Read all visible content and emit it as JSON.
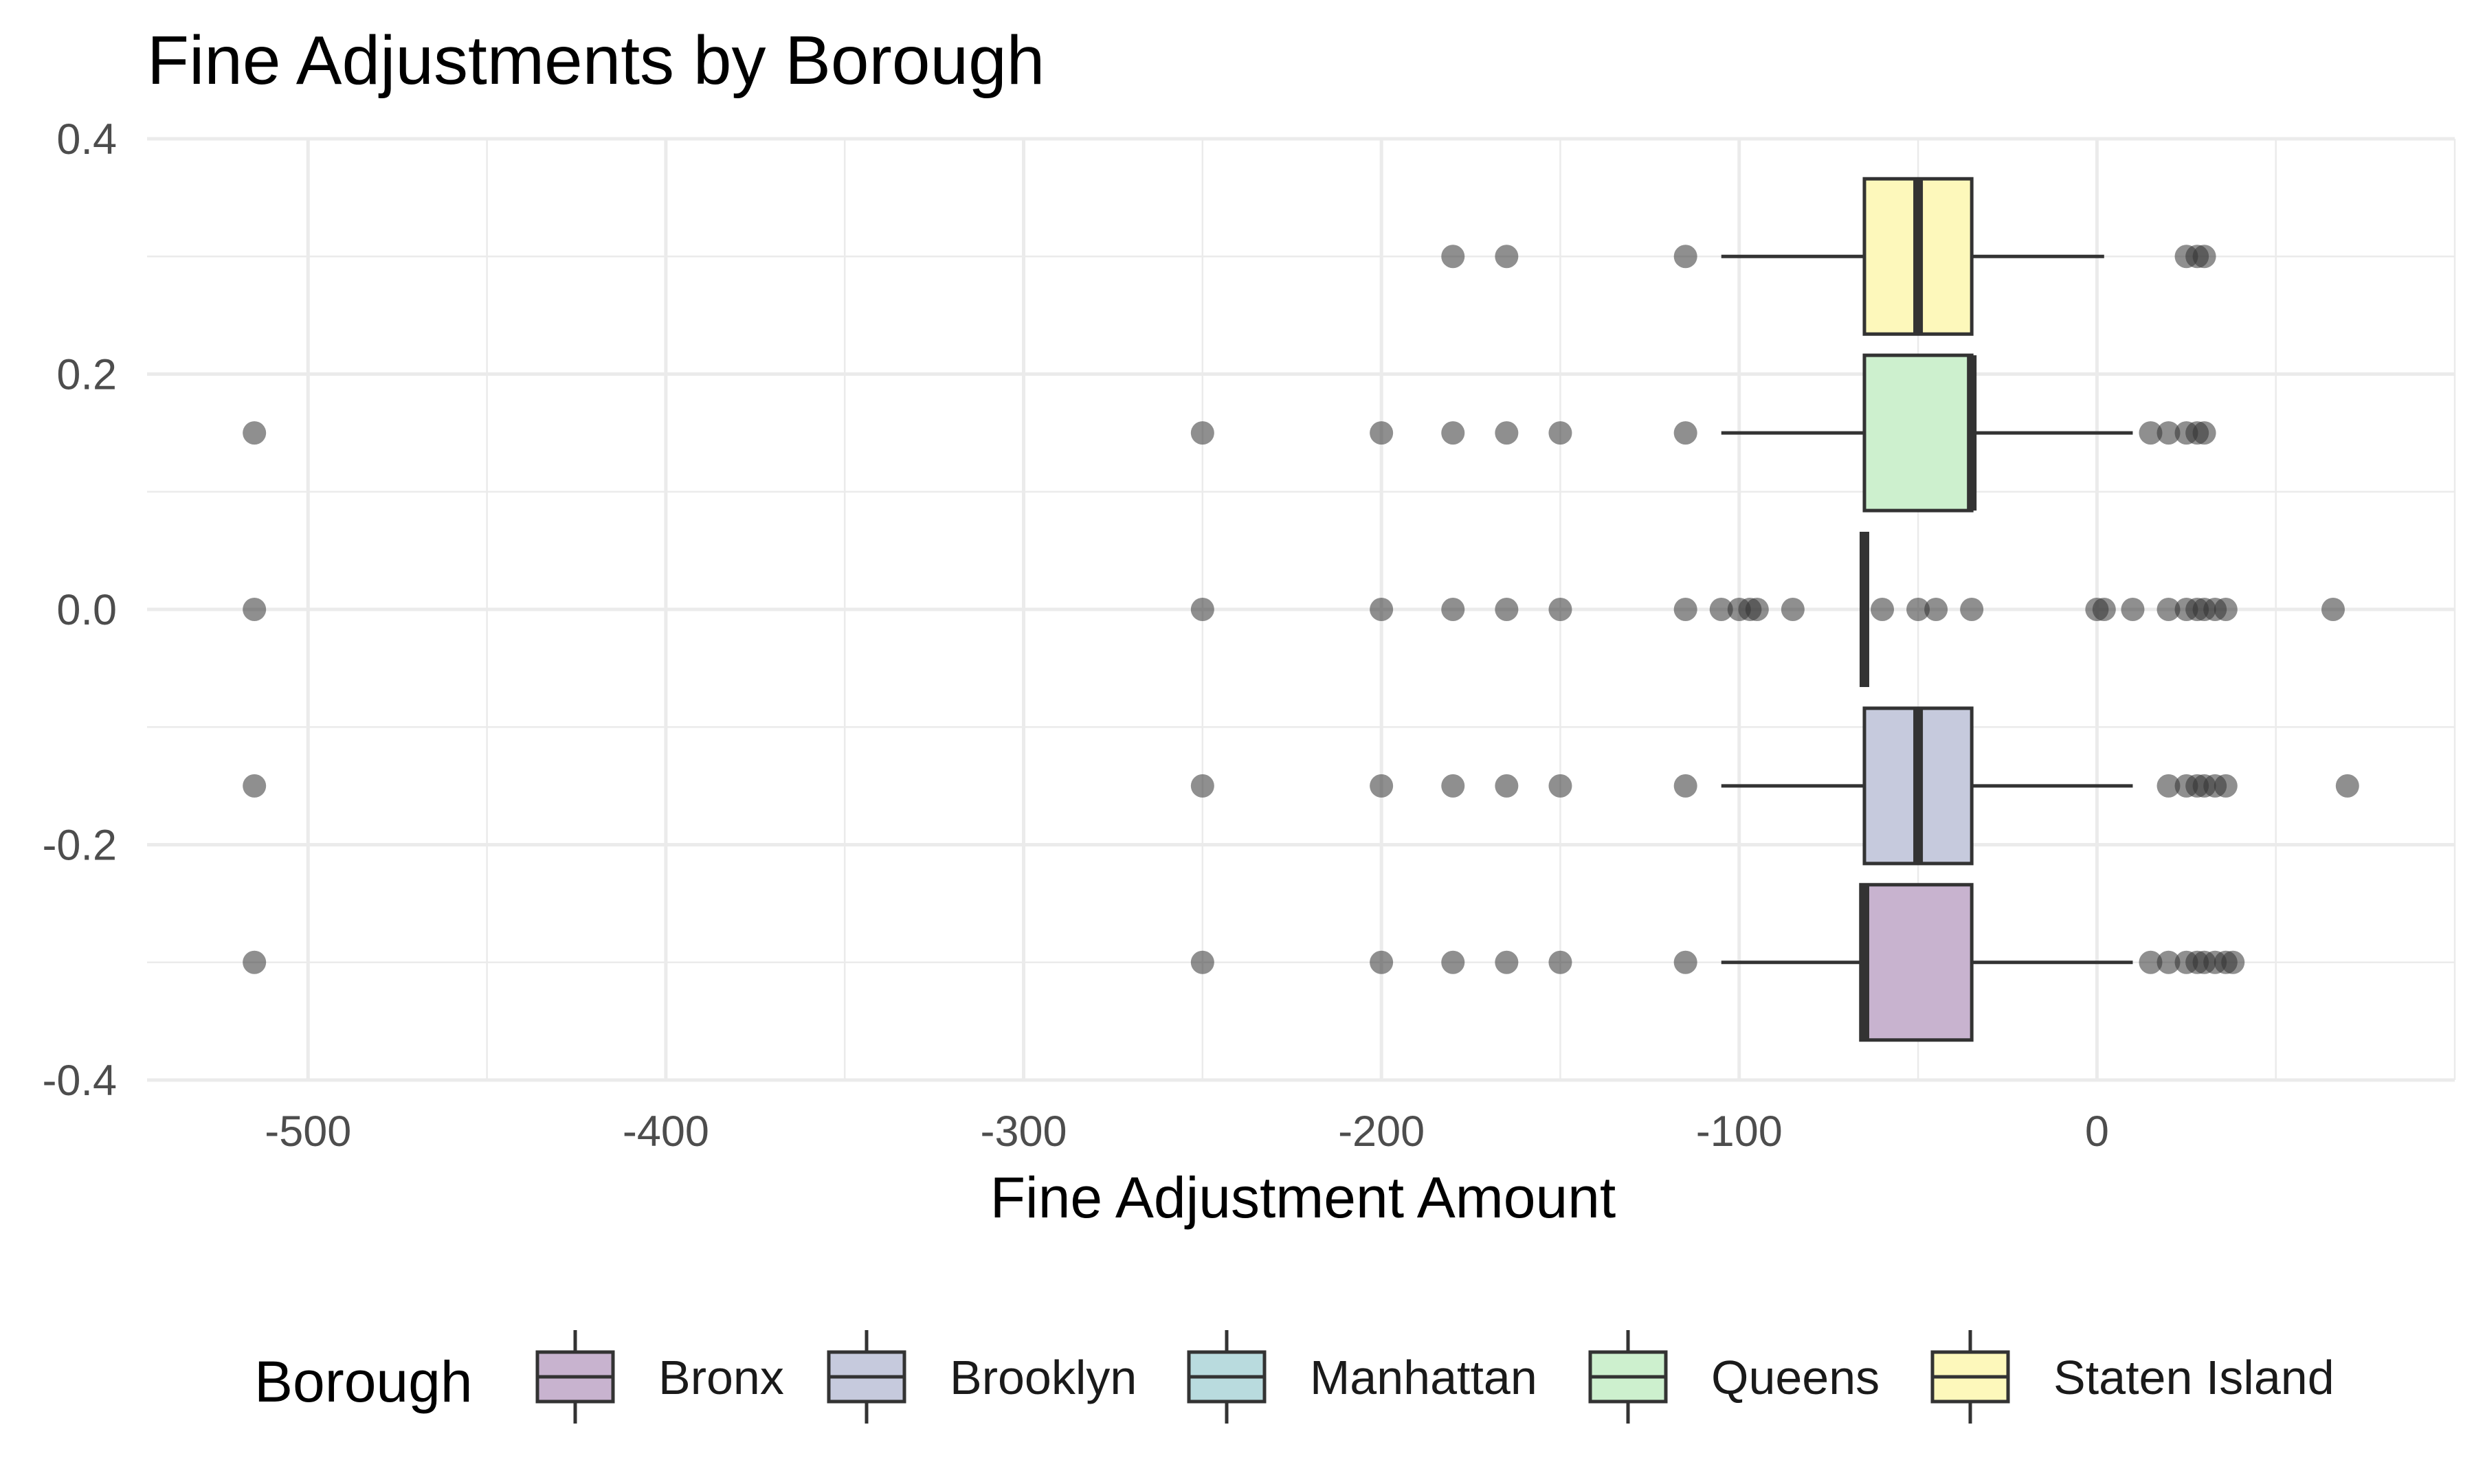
{
  "chart_data": {
    "type": "boxplot",
    "title": "Fine Adjustments by Borough",
    "xlabel": "Fine Adjustment Amount",
    "ylabel": "",
    "xlim": [
      -545,
      100
    ],
    "ylim": [
      -0.4,
      0.4
    ],
    "x_ticks": [
      -500,
      -400,
      -300,
      -200,
      -100,
      0
    ],
    "y_ticks": [
      0.4,
      0.2,
      0.0,
      -0.2,
      -0.4
    ],
    "y_tick_labels": [
      "0.4",
      "0.2",
      "0.0",
      "-0.2",
      "-0.4"
    ],
    "x_tick_labels": [
      "-500",
      "-400",
      "-300",
      "-200",
      "-100",
      "0"
    ],
    "grid": true,
    "legend": {
      "title": "Borough",
      "position": "bottom",
      "entries": [
        "Bronx",
        "Brooklyn",
        "Manhattan",
        "Queens",
        "Staten Island"
      ]
    },
    "colors": {
      "Bronx": "#c8b3cf",
      "Brooklyn": "#c6cadd",
      "Manhattan": "#b9dbde",
      "Queens": "#cdf0ce",
      "Staten Island": "#fdf8bb",
      "stroke": "#333333",
      "grid": "#ebebeb"
    },
    "series": [
      {
        "name": "Bronx",
        "y": -0.3,
        "q1": -66,
        "median": -65,
        "q3": -35,
        "whisker_low": -105,
        "whisker_high": 10,
        "outliers": [
          -515,
          -250,
          -200,
          -180,
          -165,
          -150,
          -115,
          15,
          20,
          25,
          28,
          30,
          33,
          36,
          38
        ]
      },
      {
        "name": "Brooklyn",
        "y": -0.15,
        "q1": -65,
        "median": -50,
        "q3": -35,
        "whisker_low": -105,
        "whisker_high": 10,
        "outliers": [
          -515,
          -250,
          -200,
          -180,
          -165,
          -150,
          -115,
          20,
          25,
          28,
          30,
          33,
          36,
          70
        ]
      },
      {
        "name": "Manhattan",
        "y": 0.0,
        "q1": -65,
        "median": -65,
        "q3": -65,
        "whisker_low": -65,
        "whisker_high": -65,
        "outliers": [
          -515,
          -250,
          -200,
          -180,
          -165,
          -150,
          -115,
          -105,
          -100,
          -97,
          -95,
          -85,
          -60,
          -50,
          -45,
          -35,
          0,
          2,
          10,
          20,
          25,
          28,
          30,
          33,
          36,
          66
        ]
      },
      {
        "name": "Queens",
        "y": 0.15,
        "q1": -65,
        "median": -35,
        "q3": -35,
        "whisker_low": -105,
        "whisker_high": 10,
        "outliers": [
          -515,
          -250,
          -200,
          -180,
          -165,
          -150,
          -115,
          15,
          20,
          25,
          28,
          30
        ]
      },
      {
        "name": "Staten Island",
        "y": 0.3,
        "q1": -65,
        "median": -50,
        "q3": -35,
        "whisker_low": -105,
        "whisker_high": 2,
        "outliers": [
          -180,
          -165,
          -115,
          25,
          28,
          30
        ]
      }
    ]
  }
}
